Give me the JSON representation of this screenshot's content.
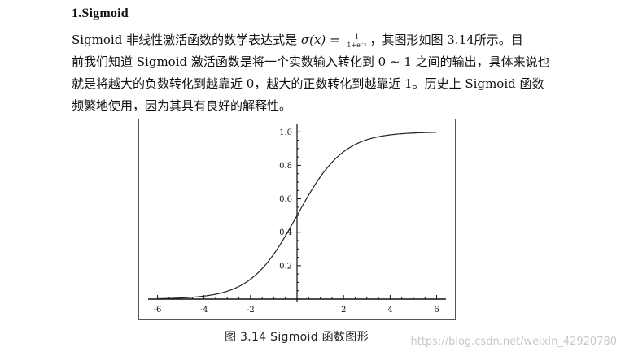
{
  "section": {
    "title": "1.Sigmoid"
  },
  "paragraph": {
    "line1_pre": "Sigmoid 非线性激活函数的数学表达式是 ",
    "formula_lhs": "σ(x) = ",
    "formula_num": "1",
    "formula_den": "1+e⁻ˣ",
    "line1_post": "，其图形如图 3.14所示。目",
    "line2": "前我们知道 Sigmoid 激活函数是将一个实数输入转化到 0 ~ 1 之间的输出，具体来说也",
    "line3": "就是将越大的负数转化到越靠近 0，越大的正数转化到越靠近 1。历史上 Sigmoid 函数",
    "line4": "频繁地使用，因为其具有良好的解释性。"
  },
  "figure": {
    "caption": "图 3.14   Sigmoid 函数图形"
  },
  "chart_data": {
    "type": "line",
    "title": "",
    "xlabel": "",
    "ylabel": "",
    "xlim": [
      -6.4,
      6.4
    ],
    "ylim": [
      0,
      1.05
    ],
    "grid": false,
    "x_ticks": [
      -6,
      -4,
      -2,
      2,
      4,
      6
    ],
    "x_tick_labels": [
      "-6",
      "-4",
      "-2",
      "2",
      "4",
      "6"
    ],
    "y_ticks": [
      0.2,
      0.4,
      0.6,
      0.8,
      1.0
    ],
    "y_tick_labels": [
      "0.2",
      "0.4",
      "0.6",
      "0.8",
      "1.0"
    ],
    "series": [
      {
        "x": [
          -6,
          -5,
          -4,
          -3,
          -2,
          -1,
          0,
          1,
          2,
          3,
          4,
          5,
          6
        ],
        "values": [
          0.0025,
          0.0067,
          0.018,
          0.047,
          0.119,
          0.269,
          0.5,
          0.731,
          0.881,
          0.953,
          0.982,
          0.993,
          0.9975
        ]
      }
    ]
  },
  "watermark": {
    "text": "https://blog.csdn.net/weixin_42920780"
  }
}
